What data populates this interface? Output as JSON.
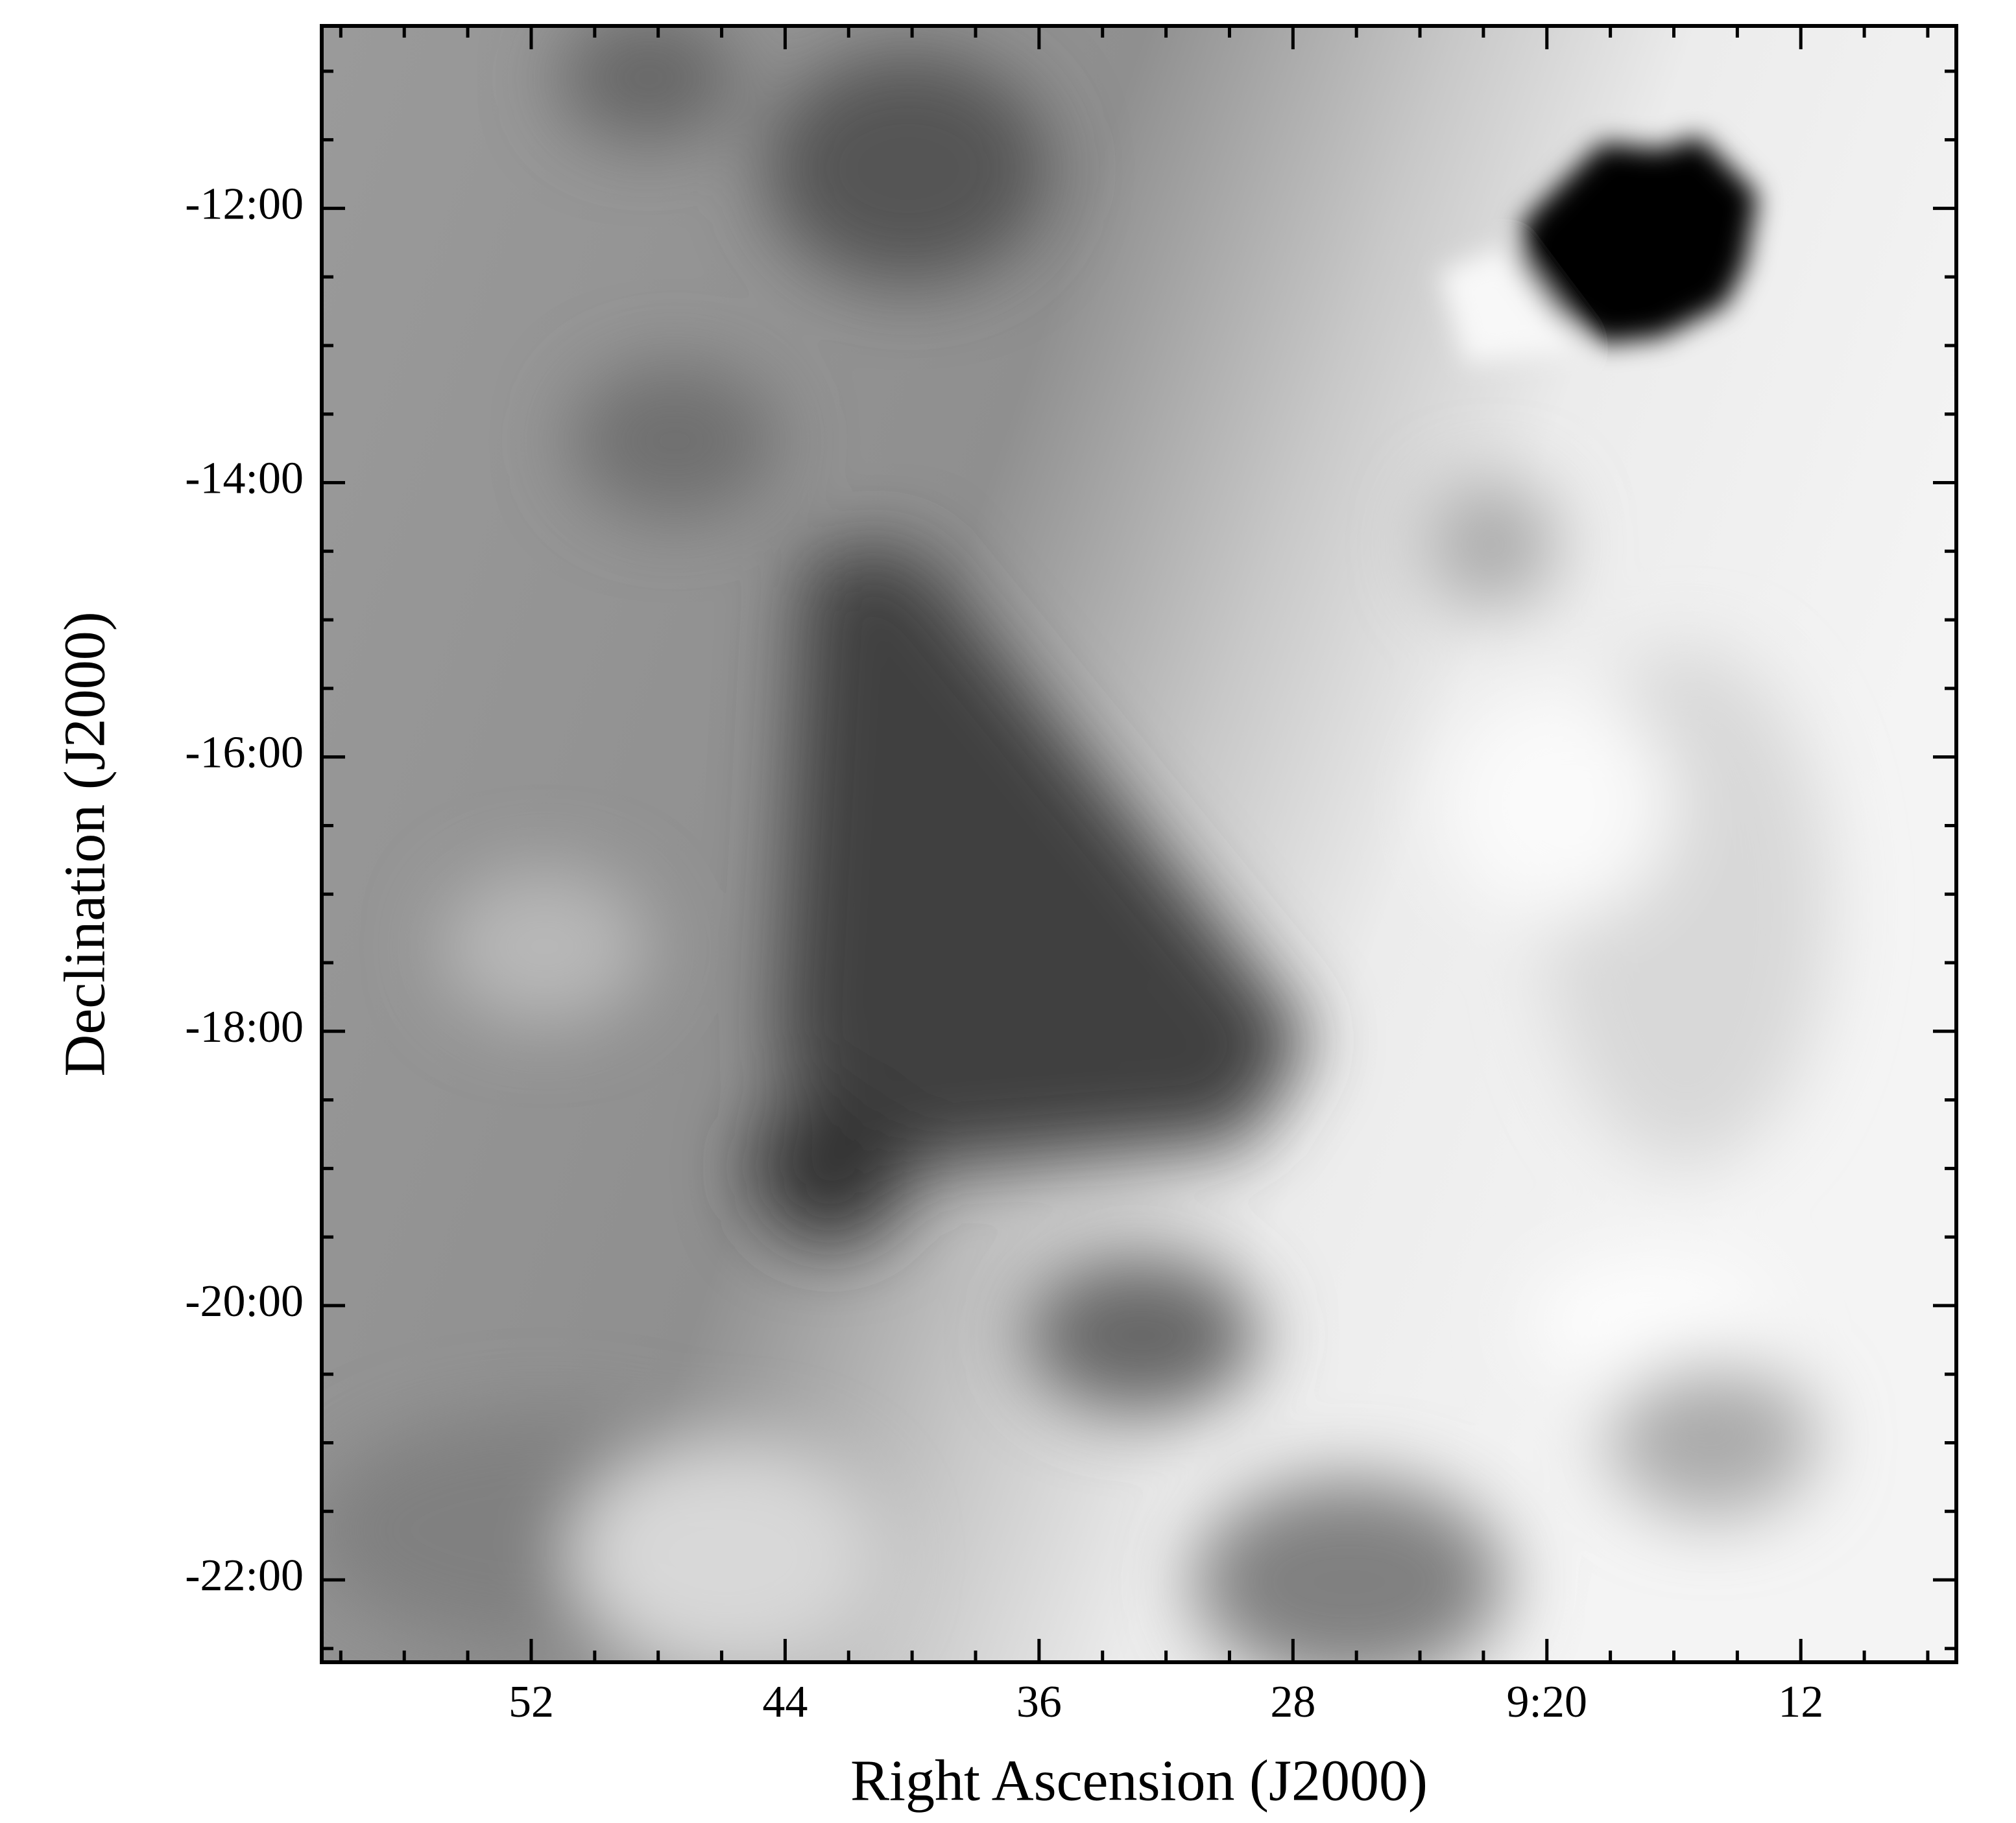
{
  "chart_data": {
    "type": "image",
    "xlabel": "Right Ascension (J2000)",
    "ylabel": "Declination (J2000)",
    "xlim": [
      598.6,
      547.1
    ],
    "ylim": [
      -22.6,
      -10.67
    ],
    "xticks": [
      {
        "value": 592,
        "label": "52"
      },
      {
        "value": 584,
        "label": "44"
      },
      {
        "value": 576,
        "label": "36"
      },
      {
        "value": 568,
        "label": "28"
      },
      {
        "value": 560,
        "label": "9:20"
      },
      {
        "value": 552,
        "label": "12"
      }
    ],
    "yticks": [
      {
        "value": -12,
        "label": "-12:00"
      },
      {
        "value": -14,
        "label": "-14:00"
      },
      {
        "value": -16,
        "label": "-16:00"
      },
      {
        "value": -18,
        "label": "-18:00"
      },
      {
        "value": -20,
        "label": "-20:00"
      },
      {
        "value": -22,
        "label": "-22:00"
      }
    ],
    "xminorticks": [
      598,
      596,
      594,
      590,
      588,
      586,
      582,
      580,
      578,
      574,
      572,
      570,
      566,
      564,
      562,
      558,
      556,
      554,
      550,
      548
    ],
    "yminorticks": [
      -11,
      -11.5,
      -12.5,
      -13,
      -13.5,
      -14.5,
      -15,
      -15.5,
      -16.5,
      -17,
      -17.5,
      -18.5,
      -19,
      -19.5,
      -20.5,
      -21,
      -21.5,
      -22.5
    ]
  }
}
